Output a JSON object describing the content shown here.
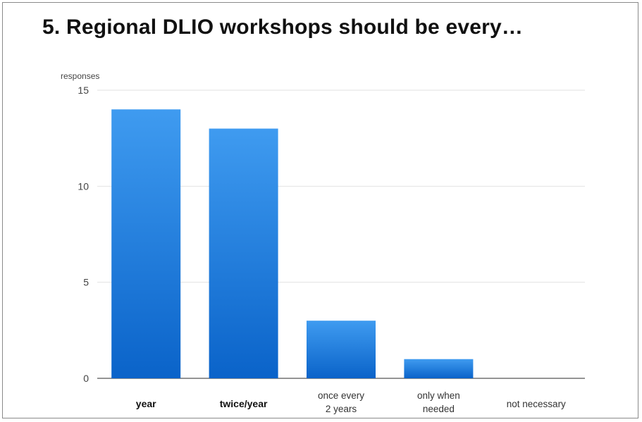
{
  "chart_data": {
    "type": "bar",
    "title": "5. Regional DLIO workshops should be every…",
    "ylabel": "responses",
    "xlabel": "",
    "categories": [
      {
        "lines": [
          "year"
        ],
        "bold": true
      },
      {
        "lines": [
          "twice/year"
        ],
        "bold": true
      },
      {
        "lines": [
          "once every",
          "2 years"
        ],
        "bold": false
      },
      {
        "lines": [
          "only when",
          "needed"
        ],
        "bold": false
      },
      {
        "lines": [
          "not necessary"
        ],
        "bold": false
      }
    ],
    "values": [
      14,
      13,
      3,
      1,
      0
    ],
    "ylim": [
      0,
      15
    ],
    "yticks": [
      0,
      5,
      10,
      15
    ],
    "grid": true,
    "legend": "none",
    "colors": {
      "bar_top": "#3f9bf0",
      "bar_bottom": "#0a63c9",
      "grid": "#e2e2e2",
      "axis": "#555555"
    }
  }
}
